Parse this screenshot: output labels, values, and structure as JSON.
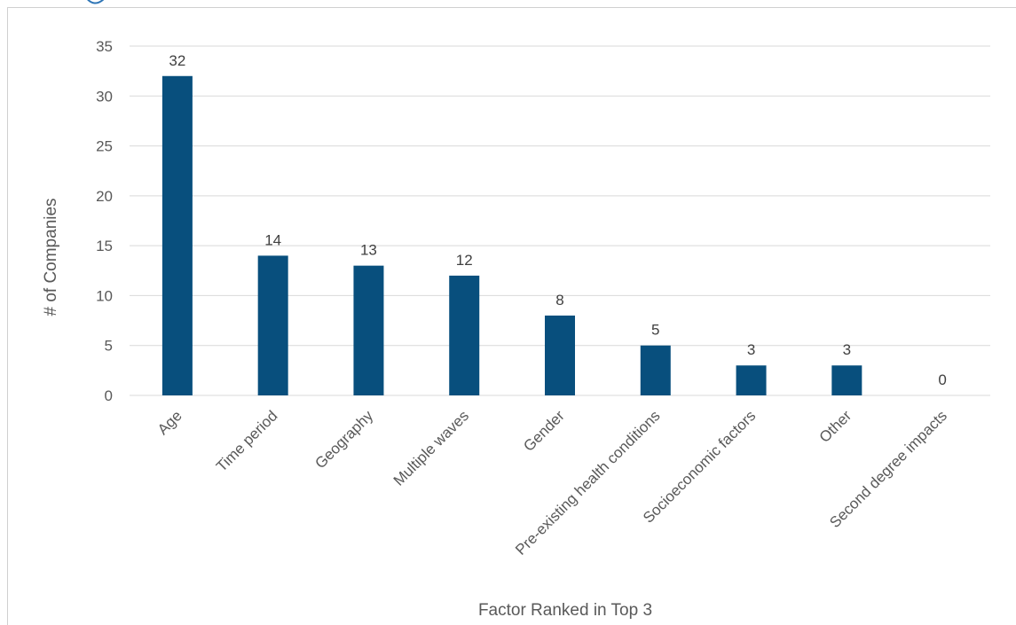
{
  "chart_data": {
    "type": "bar",
    "categories": [
      "Age",
      "Time period",
      "Geography",
      "Multiple waves",
      "Gender",
      "Pre-existing health conditions",
      "Socioeconomic factors",
      "Other",
      "Second degree impacts"
    ],
    "values": [
      32,
      14,
      13,
      12,
      8,
      5,
      3,
      3,
      0
    ],
    "xlabel": "Factor Ranked in Top 3",
    "ylabel": "# of Companies",
    "ylim": [
      0,
      35
    ],
    "yticks": [
      0,
      5,
      10,
      15,
      20,
      25,
      30,
      35
    ],
    "grid": true,
    "data_labels": true,
    "bar_color": "#084f7d",
    "gridline_color": "#d9d9d9"
  }
}
